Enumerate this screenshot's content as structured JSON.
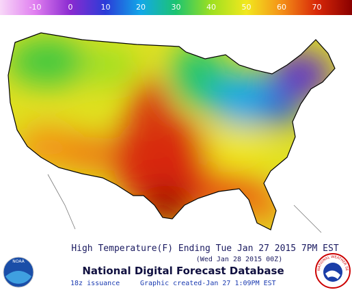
{
  "legend": {
    "ticks": [
      -10,
      0,
      10,
      20,
      30,
      40,
      50,
      60,
      70
    ],
    "range": [
      -20,
      80
    ],
    "colors": [
      "#f8d8f8",
      "#e07ef0",
      "#8a2ad0",
      "#2a3cd8",
      "#12a8e8",
      "#1cc470",
      "#9ee020",
      "#f2e81e",
      "#f49018",
      "#d82808",
      "#8a0000"
    ]
  },
  "footer": {
    "title": "High Temperature(F) Ending Tue Jan 27 2015  7PM EST",
    "valid": "(Wed Jan 28 2015 00Z)",
    "database": "National Digital Forecast Database",
    "issuance": "18z issuance",
    "created": "Graphic created-Jan 27  1:09PM EST"
  },
  "logos": {
    "left": "NOAA",
    "right": "NATIONAL WEATHER SERVICE"
  }
}
